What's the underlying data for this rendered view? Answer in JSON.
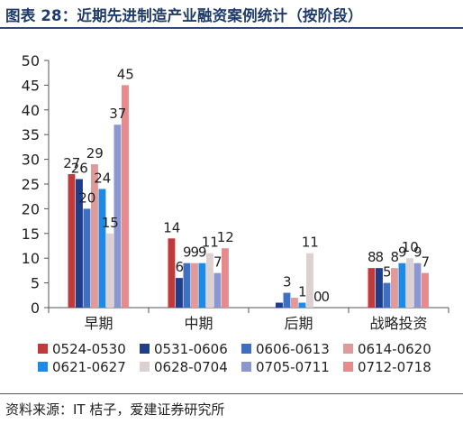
{
  "title": "图表 28：近期先进制造产业融资案例统计（按阶段）",
  "source": "资料来源：IT 桔子，爱建证券研究所",
  "chart_data": {
    "type": "bar",
    "title": "图表 28：近期先进制造产业融资案例统计（按阶段）",
    "xlabel": "",
    "ylabel": "",
    "categories": [
      "早期",
      "中期",
      "后期",
      "战略投资"
    ],
    "ylim": [
      0,
      50
    ],
    "yticks": [
      0,
      5,
      10,
      15,
      20,
      25,
      30,
      35,
      40,
      45,
      50
    ],
    "grid": false,
    "legend_position": "bottom",
    "series": [
      {
        "name": "0524-0530",
        "color": "#c0393b",
        "values": [
          27,
          14,
          0,
          8
        ]
      },
      {
        "name": "0531-0606",
        "color": "#1f3e8a",
        "values": [
          26,
          6,
          1,
          8
        ]
      },
      {
        "name": "0606-0613",
        "color": "#3f6fc0",
        "values": [
          20,
          9,
          3,
          5
        ]
      },
      {
        "name": "0614-0620",
        "color": "#e09a9a",
        "values": [
          29,
          9,
          2,
          8
        ]
      },
      {
        "name": "0621-0627",
        "color": "#1e8ae6",
        "values": [
          24,
          9,
          1,
          9
        ]
      },
      {
        "name": "0628-0704",
        "color": "#dcd0d0",
        "values": [
          15,
          11,
          11,
          10
        ]
      },
      {
        "name": "0705-0711",
        "color": "#8c96cf",
        "values": [
          37,
          7,
          0,
          9
        ]
      },
      {
        "name": "0712-0718",
        "color": "#e8898c",
        "values": [
          45,
          12,
          0,
          7
        ]
      }
    ],
    "data_labels": [
      [
        "27",
        "26",
        "20",
        "29",
        "24",
        "15",
        "37",
        "45"
      ],
      [
        "14",
        "6",
        "9",
        "9",
        "9",
        "11",
        "7",
        "12"
      ],
      [
        "",
        "",
        "3",
        "",
        "1",
        "11",
        "0",
        "0"
      ],
      [
        "8",
        "8",
        "5",
        "8",
        "9",
        "10",
        "9",
        "7"
      ]
    ]
  }
}
